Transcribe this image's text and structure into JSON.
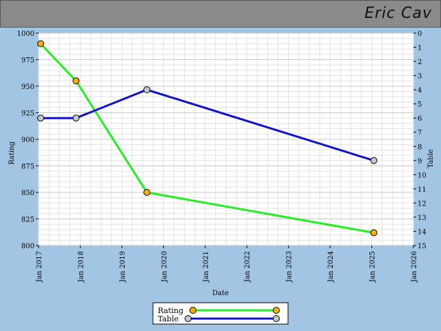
{
  "header": {
    "name": "Eric Cav"
  },
  "chart_data": {
    "type": "line",
    "xlabel": "Date",
    "ylabel_left": "Rating",
    "ylabel_right": "Table",
    "x_ticks": [
      "Jan 2017",
      "Jan 2018",
      "Jan 2019",
      "Jan 2020",
      "Jan 2021",
      "Jan 2022",
      "Jan 2023",
      "Jan 2024",
      "Jan 2025",
      "Jan 2026"
    ],
    "xlim": [
      2017.0,
      2026.0
    ],
    "ylim_left": [
      800,
      1000
    ],
    "ylim_right": [
      0,
      15
    ],
    "left_ticks": [
      "800",
      "825",
      "850",
      "875",
      "900",
      "925",
      "950",
      "975",
      "1000"
    ],
    "right_ticks": [
      "0",
      "1",
      "2",
      "3",
      "4",
      "5",
      "6",
      "7",
      "8",
      "9",
      "10",
      "11",
      "12",
      "13",
      "14",
      "15"
    ],
    "grid": true,
    "legend_position": "bottom-center",
    "series": [
      {
        "name": "Rating",
        "axis": "left",
        "line_color": "#22ee22",
        "marker_color": "#ffb000",
        "x": [
          2017.05,
          2017.9,
          2019.6,
          2025.05
        ],
        "y": [
          990,
          955,
          850,
          812
        ]
      },
      {
        "name": "Table",
        "axis": "right",
        "line_color": "#1010cc",
        "marker_color": "#c8c8c8",
        "x": [
          2017.05,
          2017.9,
          2019.6,
          2025.05
        ],
        "y": [
          6,
          6,
          4,
          9
        ]
      }
    ]
  }
}
